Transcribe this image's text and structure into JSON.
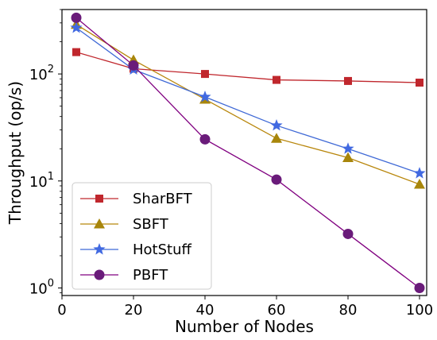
{
  "chart_data": {
    "type": "line",
    "xlabel": "Number of Nodes",
    "ylabel": "Throughput (op/s)",
    "xlim": [
      0,
      102
    ],
    "ylim": [
      0.85,
      400
    ],
    "yscale": "log",
    "grid": false,
    "legend_position": "bottom-left",
    "x_ticks": [
      0,
      20,
      40,
      60,
      80,
      100
    ],
    "y_ticks": [
      1,
      10,
      100
    ],
    "y_tick_labels": [
      {
        "base": "10",
        "exp": "0"
      },
      {
        "base": "10",
        "exp": "1"
      },
      {
        "base": "10",
        "exp": "2"
      }
    ],
    "series": [
      {
        "name": "SharBFT",
        "marker": "square",
        "color": "#c0272d",
        "marker_color": "#c0272d",
        "x": [
          4,
          20,
          40,
          60,
          80,
          100
        ],
        "y": [
          160,
          112,
          100,
          88,
          86,
          83
        ]
      },
      {
        "name": "SBFT",
        "marker": "triangle",
        "color": "#b8860b",
        "marker_color": "#a8860b",
        "x": [
          4,
          20,
          40,
          60,
          80,
          100
        ],
        "y": [
          290,
          135,
          58,
          25,
          16.5,
          9.3
        ]
      },
      {
        "name": "HotStuff",
        "marker": "star",
        "color": "#3f69d6",
        "marker_color": "#4169e1",
        "x": [
          4,
          20,
          40,
          60,
          80,
          100
        ],
        "y": [
          270,
          110,
          61,
          33,
          20,
          11.8
        ]
      },
      {
        "name": "PBFT",
        "marker": "circle",
        "color": "#800080",
        "marker_color": "#6a1b7a",
        "x": [
          4,
          20,
          40,
          60,
          80,
          100
        ],
        "y": [
          335,
          120,
          24.5,
          10.3,
          3.2,
          1.0
        ]
      }
    ]
  }
}
